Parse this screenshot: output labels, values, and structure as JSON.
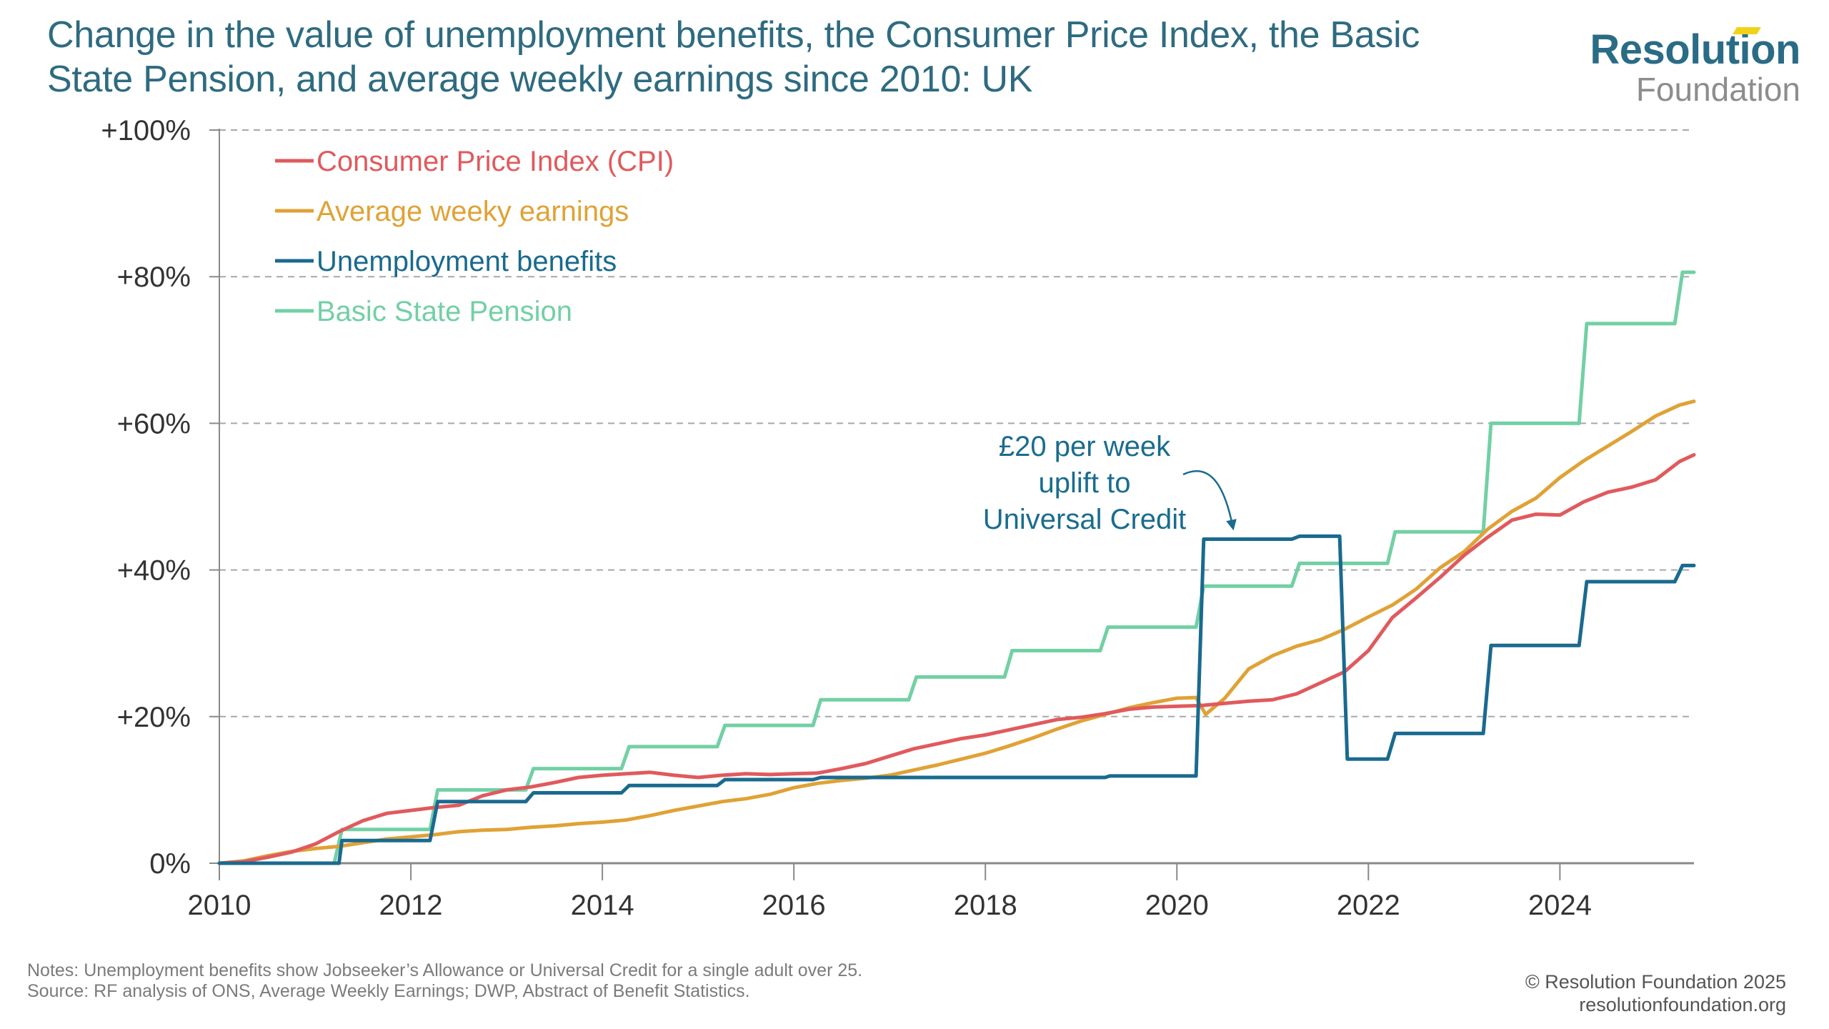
{
  "header": {
    "title": "Change in the value of unemployment benefits, the Consumer Price Index, the Basic State Pension, and average weekly earnings since 2010: UK",
    "logo_top": "Resolution",
    "logo_bottom": "Foundation"
  },
  "footer": {
    "notes": "Notes: Unemployment benefits show Jobseeker’s Allowance or Universal Credit for a single adult over 25.",
    "source": "Source: RF analysis of ONS, Average Weekly Earnings; DWP, Abstract of Benefit Statistics.",
    "copyright": "© Resolution Foundation 2025",
    "website": "resolutionfoundation.org"
  },
  "chart_data": {
    "type": "line",
    "title": "Change in the value of unemployment benefits, the Consumer Price Index, the Basic State Pension, and average weekly earnings since 2010: UK",
    "xlabel": "",
    "ylabel": "",
    "xlim": [
      2010,
      2025.4
    ],
    "ylim": [
      0,
      100
    ],
    "x_ticks": [
      2010,
      2012,
      2014,
      2016,
      2018,
      2020,
      2022,
      2024
    ],
    "x_tick_labels": [
      "2010",
      "2012",
      "2014",
      "2016",
      "2018",
      "2020",
      "2022",
      "2024"
    ],
    "y_ticks": [
      0,
      20,
      40,
      60,
      80,
      100
    ],
    "y_tick_labels": [
      "0%",
      "+20%",
      "+40%",
      "+60%",
      "+80%",
      "+100%"
    ],
    "grid": "horizontal dashed",
    "legend_position": "top-left",
    "annotation": {
      "lines": [
        "£20 per week",
        "uplift to",
        "Universal Credit"
      ],
      "points_to": {
        "x": 2020.3,
        "y": 44
      }
    },
    "series": [
      {
        "name": "Consumer Price Index (CPI)",
        "color": "#e05a5d",
        "x": [
          2010.0,
          2010.25,
          2010.5,
          2010.75,
          2011.0,
          2011.25,
          2011.5,
          2011.75,
          2012.0,
          2012.25,
          2012.5,
          2012.75,
          2013.0,
          2013.25,
          2013.5,
          2013.75,
          2014.0,
          2014.25,
          2014.5,
          2014.75,
          2015.0,
          2015.25,
          2015.5,
          2015.75,
          2016.0,
          2016.25,
          2016.5,
          2016.75,
          2017.0,
          2017.25,
          2017.5,
          2017.75,
          2018.0,
          2018.25,
          2018.5,
          2018.75,
          2019.0,
          2019.25,
          2019.5,
          2019.75,
          2020.0,
          2020.25,
          2020.5,
          2020.75,
          2021.0,
          2021.25,
          2021.5,
          2021.75,
          2022.0,
          2022.25,
          2022.5,
          2022.75,
          2023.0,
          2023.25,
          2023.5,
          2023.75,
          2024.0,
          2024.25,
          2024.5,
          2024.75,
          2025.0,
          2025.25,
          2025.4
        ],
        "y": [
          0,
          0.2,
          0.8,
          1.5,
          2.6,
          4.3,
          5.8,
          6.8,
          7.2,
          7.6,
          7.9,
          9.2,
          10.0,
          10.4,
          11.0,
          11.7,
          12.0,
          12.2,
          12.4,
          12.0,
          11.7,
          12.0,
          12.2,
          12.1,
          12.2,
          12.3,
          12.9,
          13.6,
          14.6,
          15.6,
          16.3,
          17.0,
          17.5,
          18.2,
          18.9,
          19.6,
          19.9,
          20.4,
          21.0,
          21.3,
          21.4,
          21.5,
          21.8,
          22.1,
          22.3,
          23.1,
          24.6,
          26.1,
          29.0,
          33.5,
          36.2,
          39.0,
          42.0,
          44.5,
          46.8,
          47.6,
          47.5,
          49.3,
          50.6,
          51.3,
          52.3,
          54.8,
          55.7
        ]
      },
      {
        "name": "Average weeky earnings",
        "color": "#e0a236",
        "x": [
          2010.0,
          2010.25,
          2010.5,
          2010.75,
          2011.0,
          2011.25,
          2011.5,
          2011.75,
          2012.0,
          2012.25,
          2012.5,
          2012.75,
          2013.0,
          2013.25,
          2013.5,
          2013.75,
          2014.0,
          2014.25,
          2014.5,
          2014.75,
          2015.0,
          2015.25,
          2015.5,
          2015.75,
          2016.0,
          2016.25,
          2016.5,
          2016.75,
          2017.0,
          2017.25,
          2017.5,
          2017.75,
          2018.0,
          2018.25,
          2018.5,
          2018.75,
          2019.0,
          2019.25,
          2019.5,
          2019.75,
          2020.0,
          2020.2,
          2020.3,
          2020.5,
          2020.75,
          2021.0,
          2021.25,
          2021.5,
          2021.75,
          2022.0,
          2022.25,
          2022.5,
          2022.75,
          2023.0,
          2023.25,
          2023.5,
          2023.75,
          2024.0,
          2024.25,
          2024.5,
          2024.75,
          2025.0,
          2025.25,
          2025.4
        ],
        "y": [
          0,
          0.3,
          1.0,
          1.6,
          2.0,
          2.3,
          2.8,
          3.3,
          3.6,
          3.9,
          4.3,
          4.5,
          4.6,
          4.9,
          5.1,
          5.4,
          5.6,
          5.9,
          6.5,
          7.2,
          7.8,
          8.4,
          8.8,
          9.4,
          10.3,
          10.9,
          11.3,
          11.6,
          12.0,
          12.7,
          13.4,
          14.2,
          15.0,
          16.0,
          17.1,
          18.3,
          19.4,
          20.3,
          21.2,
          21.9,
          22.5,
          22.6,
          20.3,
          22.5,
          26.5,
          28.3,
          29.6,
          30.5,
          31.9,
          33.6,
          35.2,
          37.4,
          40.3,
          42.5,
          45.6,
          48.0,
          49.8,
          52.6,
          54.9,
          56.9,
          58.9,
          61.0,
          62.5,
          63.0
        ]
      },
      {
        "name": "Unemployment benefits",
        "color": "#1a6a8f",
        "x": [
          2010.0,
          2011.25,
          2011.28,
          2012.2,
          2012.28,
          2013.2,
          2013.28,
          2014.2,
          2014.28,
          2015.2,
          2015.28,
          2016.2,
          2016.28,
          2019.25,
          2019.3,
          2020.2,
          2020.28,
          2021.2,
          2021.28,
          2021.7,
          2021.78,
          2022.2,
          2022.28,
          2023.2,
          2023.28,
          2024.2,
          2024.28,
          2025.2,
          2025.28,
          2025.4
        ],
        "y": [
          0,
          0,
          3.1,
          3.1,
          8.4,
          8.4,
          9.6,
          9.6,
          10.6,
          10.6,
          11.4,
          11.4,
          11.7,
          11.7,
          11.9,
          11.9,
          44.2,
          44.2,
          44.6,
          44.6,
          14.2,
          14.2,
          17.7,
          17.7,
          29.7,
          29.7,
          38.4,
          38.4,
          40.6,
          40.6
        ]
      },
      {
        "name": "Basic State Pension",
        "color": "#72d0a4",
        "x": [
          2010.0,
          2011.2,
          2011.28,
          2012.2,
          2012.28,
          2013.2,
          2013.28,
          2014.2,
          2014.28,
          2015.2,
          2015.28,
          2016.2,
          2016.28,
          2017.2,
          2017.28,
          2018.2,
          2018.28,
          2019.2,
          2019.28,
          2020.2,
          2020.28,
          2021.2,
          2021.28,
          2022.2,
          2022.28,
          2023.2,
          2023.28,
          2024.2,
          2024.28,
          2025.2,
          2025.28,
          2025.4
        ],
        "y": [
          0,
          0,
          4.6,
          4.6,
          10.0,
          10.0,
          12.9,
          12.9,
          15.9,
          15.9,
          18.8,
          18.8,
          22.3,
          22.3,
          25.4,
          25.4,
          29.0,
          29.0,
          32.2,
          32.2,
          37.8,
          37.8,
          40.9,
          40.9,
          45.2,
          45.2,
          60.0,
          60.0,
          73.6,
          73.6,
          80.6,
          80.6
        ]
      }
    ]
  }
}
